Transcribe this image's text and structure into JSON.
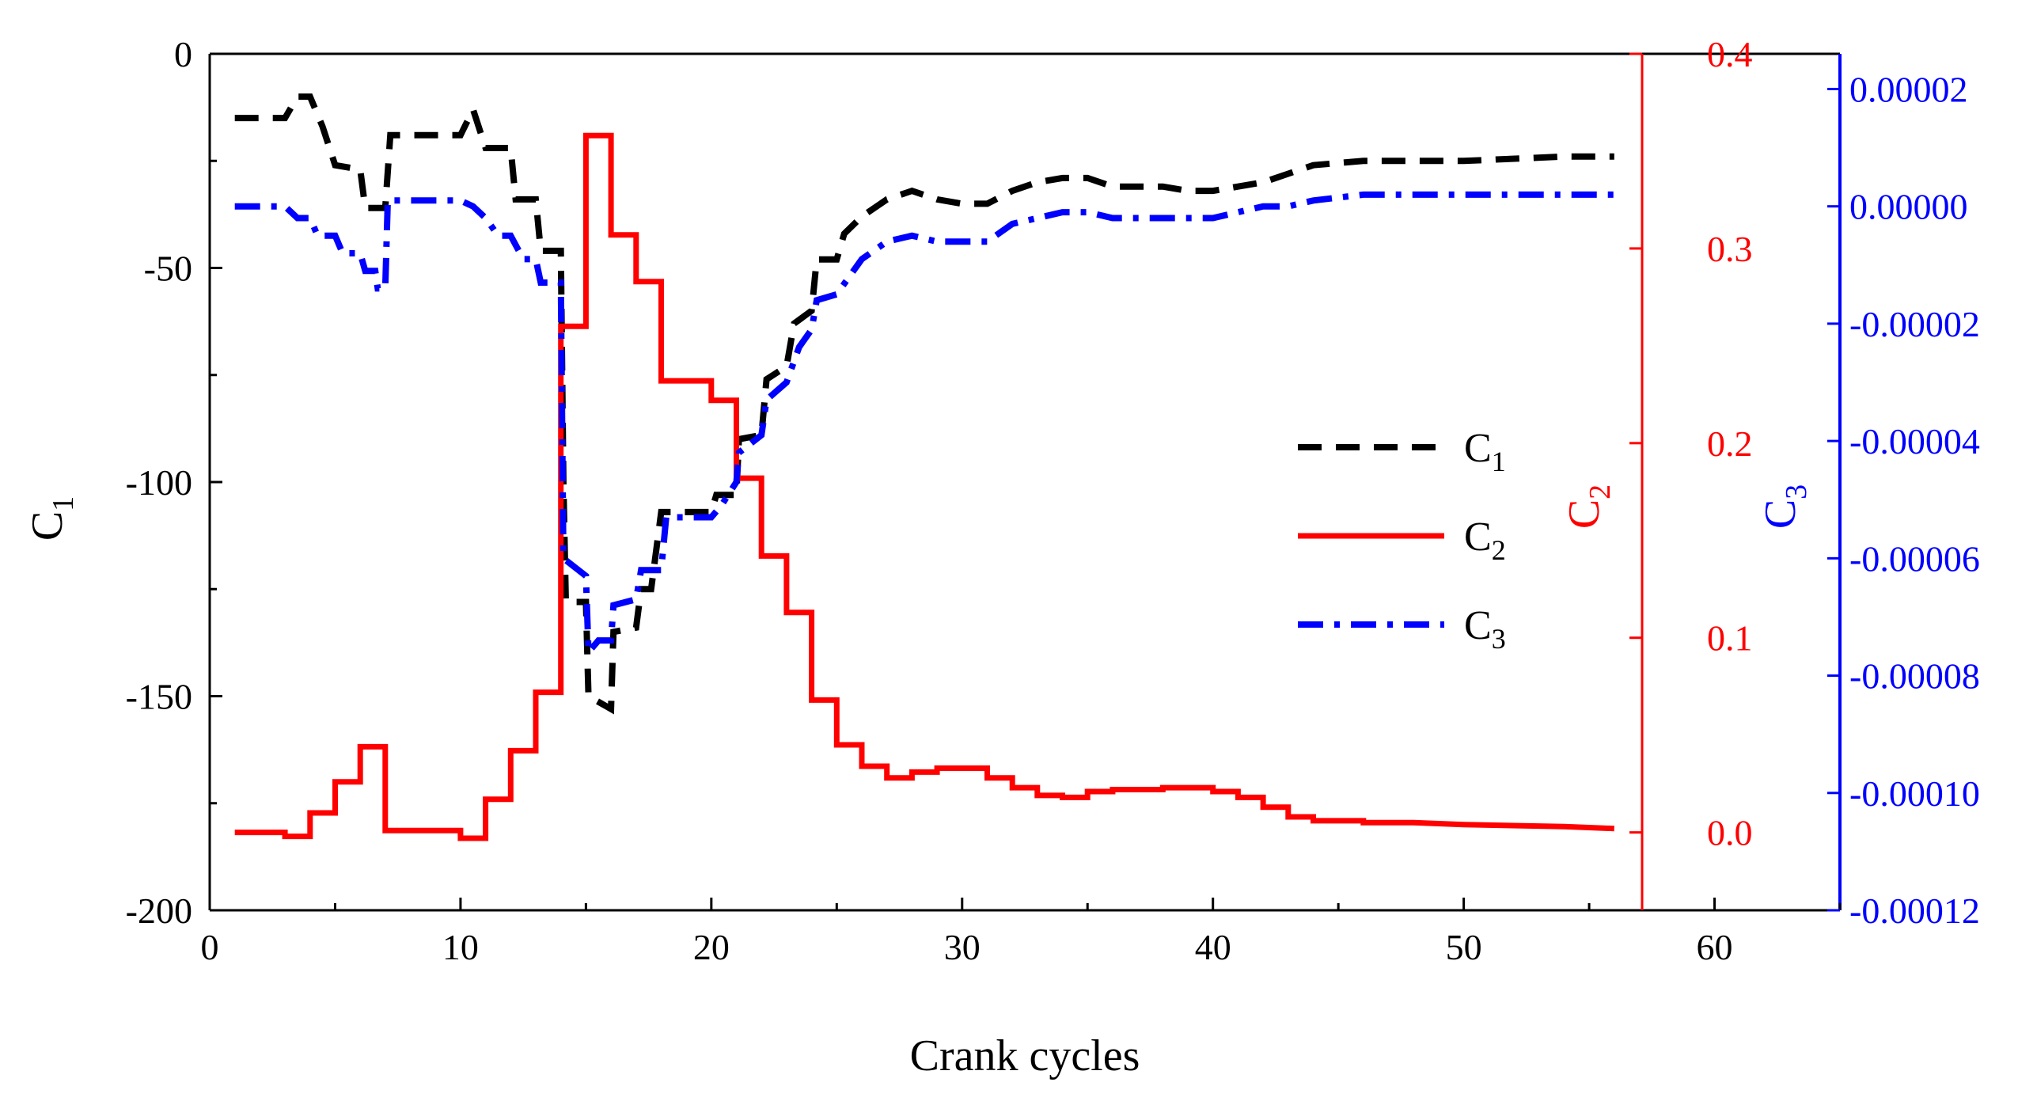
{
  "chart_data": {
    "type": "line",
    "title": "",
    "xlabel": "Crank cycles",
    "xlim": [
      0,
      65
    ],
    "x_ticks": [
      "0",
      "10",
      "20",
      "30",
      "40",
      "50",
      "60"
    ],
    "x_tick_values": [
      0,
      10,
      20,
      30,
      40,
      50,
      60
    ],
    "axes": {
      "c1": {
        "label": "C",
        "sub": "1",
        "color": "#000000",
        "ylim": [
          -200,
          0
        ],
        "ticks": [
          "0",
          "-50",
          "-100",
          "-150",
          "-200"
        ],
        "tick_values": [
          0,
          -50,
          -100,
          -150,
          -200
        ]
      },
      "c2": {
        "label": "C",
        "sub": "2",
        "color": "#ff0000",
        "ylim": [
          -0.04,
          0.4
        ],
        "ticks": [
          "0.4",
          "0.3",
          "0.2",
          "0.1",
          "0.0"
        ],
        "tick_values": [
          0.4,
          0.3,
          0.2,
          0.1,
          0.0
        ]
      },
      "c3": {
        "label": "C",
        "sub": "3",
        "color": "#0000ff",
        "ylim": [
          -0.00012,
          2.6e-05
        ],
        "ticks": [
          "0.00002",
          "0.00000",
          "-0.00002",
          "-0.00004",
          "-0.00006",
          "-0.00008",
          "-0.00010",
          "-0.00012"
        ],
        "tick_values": [
          2e-05,
          0.0,
          -2e-05,
          -4e-05,
          -6e-05,
          -8e-05,
          -0.0001,
          -0.00012
        ]
      }
    },
    "legend": {
      "position": "center-right",
      "entries": [
        {
          "label": "C",
          "sub": "1",
          "series": "C1"
        },
        {
          "label": "C",
          "sub": "2",
          "series": "C2"
        },
        {
          "label": "C",
          "sub": "3",
          "series": "C3"
        }
      ]
    },
    "series": [
      {
        "name": "C1",
        "axis": "c1",
        "color": "#000000",
        "style": "dashed",
        "step": true,
        "points": [
          [
            1,
            -15
          ],
          [
            2,
            -15
          ],
          [
            3,
            -15
          ],
          [
            3.5,
            -10
          ],
          [
            4,
            -10
          ],
          [
            4.5,
            -17
          ],
          [
            5,
            -26
          ],
          [
            6,
            -27
          ],
          [
            6.2,
            -36
          ],
          [
            7,
            -36
          ],
          [
            7.2,
            -19
          ],
          [
            8,
            -19
          ],
          [
            10,
            -19
          ],
          [
            10.5,
            -13
          ],
          [
            11,
            -22
          ],
          [
            12,
            -22
          ],
          [
            12.2,
            -34
          ],
          [
            13,
            -34
          ],
          [
            13.2,
            -46
          ],
          [
            14,
            -46
          ],
          [
            14.1,
            -100
          ],
          [
            14.2,
            -128
          ],
          [
            15,
            -128
          ],
          [
            15.1,
            -150
          ],
          [
            16,
            -153
          ],
          [
            16.1,
            -135
          ],
          [
            17,
            -134
          ],
          [
            17.2,
            -125
          ],
          [
            17.6,
            -125
          ],
          [
            18,
            -107
          ],
          [
            19,
            -107
          ],
          [
            20,
            -107
          ],
          [
            20.2,
            -103
          ],
          [
            21,
            -103
          ],
          [
            21.1,
            -90
          ],
          [
            22,
            -89
          ],
          [
            22.2,
            -76
          ],
          [
            23,
            -73
          ],
          [
            23.3,
            -63
          ],
          [
            24,
            -60
          ],
          [
            24.2,
            -48
          ],
          [
            25,
            -48
          ],
          [
            25.3,
            -42
          ],
          [
            26,
            -38
          ],
          [
            27,
            -34
          ],
          [
            28,
            -32
          ],
          [
            29,
            -34
          ],
          [
            30,
            -35
          ],
          [
            31,
            -35
          ],
          [
            32,
            -32
          ],
          [
            33,
            -30
          ],
          [
            34,
            -29
          ],
          [
            35,
            -29
          ],
          [
            36,
            -31
          ],
          [
            37,
            -31
          ],
          [
            38,
            -31
          ],
          [
            39,
            -32
          ],
          [
            40,
            -32
          ],
          [
            41,
            -31
          ],
          [
            42,
            -30
          ],
          [
            43,
            -28
          ],
          [
            44,
            -26
          ],
          [
            46,
            -25
          ],
          [
            50,
            -25
          ],
          [
            54,
            -24
          ],
          [
            56,
            -24
          ]
        ]
      },
      {
        "name": "C2",
        "axis": "c2",
        "color": "#ff0000",
        "style": "solid",
        "step": true,
        "points": [
          [
            1,
            0.0
          ],
          [
            3,
            0.0
          ],
          [
            3,
            -0.002
          ],
          [
            4,
            -0.002
          ],
          [
            4,
            0.01
          ],
          [
            5,
            0.01
          ],
          [
            5,
            0.026
          ],
          [
            6,
            0.026
          ],
          [
            6,
            0.044
          ],
          [
            7,
            0.044
          ],
          [
            7,
            0.001
          ],
          [
            10,
            0.001
          ],
          [
            10,
            -0.003
          ],
          [
            11,
            -0.003
          ],
          [
            11,
            0.017
          ],
          [
            12,
            0.017
          ],
          [
            12,
            0.042
          ],
          [
            13,
            0.042
          ],
          [
            13,
            0.072
          ],
          [
            14,
            0.072
          ],
          [
            14,
            0.26
          ],
          [
            15,
            0.26
          ],
          [
            15,
            0.358
          ],
          [
            16,
            0.358
          ],
          [
            16,
            0.307
          ],
          [
            17,
            0.307
          ],
          [
            17,
            0.283
          ],
          [
            18,
            0.283
          ],
          [
            18,
            0.232
          ],
          [
            20,
            0.232
          ],
          [
            20,
            0.222
          ],
          [
            21,
            0.222
          ],
          [
            21,
            0.182
          ],
          [
            22,
            0.182
          ],
          [
            22,
            0.142
          ],
          [
            23,
            0.142
          ],
          [
            23,
            0.113
          ],
          [
            24,
            0.113
          ],
          [
            24,
            0.068
          ],
          [
            25,
            0.068
          ],
          [
            25,
            0.045
          ],
          [
            26,
            0.045
          ],
          [
            26,
            0.034
          ],
          [
            27,
            0.034
          ],
          [
            27,
            0.028
          ],
          [
            28,
            0.028
          ],
          [
            28,
            0.031
          ],
          [
            29,
            0.031
          ],
          [
            29,
            0.033
          ],
          [
            31,
            0.033
          ],
          [
            31,
            0.028
          ],
          [
            32,
            0.028
          ],
          [
            32,
            0.023
          ],
          [
            33,
            0.023
          ],
          [
            33,
            0.019
          ],
          [
            34,
            0.019
          ],
          [
            34,
            0.018
          ],
          [
            35,
            0.018
          ],
          [
            35,
            0.021
          ],
          [
            36,
            0.021
          ],
          [
            36,
            0.022
          ],
          [
            38,
            0.022
          ],
          [
            38,
            0.023
          ],
          [
            40,
            0.023
          ],
          [
            40,
            0.021
          ],
          [
            41,
            0.021
          ],
          [
            41,
            0.018
          ],
          [
            42,
            0.018
          ],
          [
            42,
            0.013
          ],
          [
            43,
            0.013
          ],
          [
            43,
            0.008
          ],
          [
            44,
            0.008
          ],
          [
            44,
            0.006
          ],
          [
            46,
            0.006
          ],
          [
            46,
            0.005
          ],
          [
            48,
            0.005
          ],
          [
            50,
            0.004
          ],
          [
            54,
            0.003
          ],
          [
            56,
            0.002
          ]
        ]
      },
      {
        "name": "C3",
        "axis": "c3",
        "color": "#0000ff",
        "style": "dashdot",
        "step": true,
        "points": [
          [
            1,
            0.0
          ],
          [
            3,
            0.0
          ],
          [
            3.5,
            -2e-06
          ],
          [
            4,
            -2e-06
          ],
          [
            4.3,
            -5e-06
          ],
          [
            5,
            -5e-06
          ],
          [
            5.3,
            -8e-06
          ],
          [
            6,
            -8e-06
          ],
          [
            6.2,
            -1.1e-05
          ],
          [
            6.6,
            -1.1e-05
          ],
          [
            6.7,
            -1.4e-05
          ],
          [
            7,
            -1.4e-05
          ],
          [
            7.1,
            1e-06
          ],
          [
            8,
            1e-06
          ],
          [
            10,
            1e-06
          ],
          [
            10.5,
            0.0
          ],
          [
            11,
            -2e-06
          ],
          [
            11.5,
            -5e-06
          ],
          [
            12,
            -5e-06
          ],
          [
            12.5,
            -9e-06
          ],
          [
            13,
            -9e-06
          ],
          [
            13.2,
            -1.3e-05
          ],
          [
            14,
            -1.3e-05
          ],
          [
            14.1,
            -6e-05
          ],
          [
            15,
            -6.3e-05
          ],
          [
            15.1,
            -7.6e-05
          ],
          [
            15.5,
            -7.4e-05
          ],
          [
            16,
            -7.4e-05
          ],
          [
            16.1,
            -6.8e-05
          ],
          [
            17,
            -6.7e-05
          ],
          [
            17.2,
            -6.2e-05
          ],
          [
            18,
            -6.2e-05
          ],
          [
            18.2,
            -5.3e-05
          ],
          [
            19,
            -5.3e-05
          ],
          [
            20,
            -5.3e-05
          ],
          [
            20.4,
            -5.1e-05
          ],
          [
            21,
            -4.7e-05
          ],
          [
            21.1,
            -4.2e-05
          ],
          [
            22,
            -3.9e-05
          ],
          [
            22.2,
            -3.3e-05
          ],
          [
            23,
            -3e-05
          ],
          [
            23.5,
            -2.4e-05
          ],
          [
            24,
            -2.1e-05
          ],
          [
            24.2,
            -1.6e-05
          ],
          [
            25,
            -1.5e-05
          ],
          [
            26,
            -9e-06
          ],
          [
            27,
            -6e-06
          ],
          [
            28,
            -5e-06
          ],
          [
            29,
            -6e-06
          ],
          [
            30,
            -6e-06
          ],
          [
            31,
            -6e-06
          ],
          [
            32,
            -3e-06
          ],
          [
            33,
            -2e-06
          ],
          [
            34,
            -1e-06
          ],
          [
            35,
            -1e-06
          ],
          [
            36,
            -2e-06
          ],
          [
            37,
            -2e-06
          ],
          [
            38,
            -2e-06
          ],
          [
            40,
            -2e-06
          ],
          [
            41,
            -1e-06
          ],
          [
            42,
            0.0
          ],
          [
            43,
            0.0
          ],
          [
            44,
            1e-06
          ],
          [
            46,
            2e-06
          ],
          [
            48,
            2e-06
          ],
          [
            52,
            2e-06
          ],
          [
            56,
            2e-06
          ]
        ]
      }
    ]
  }
}
